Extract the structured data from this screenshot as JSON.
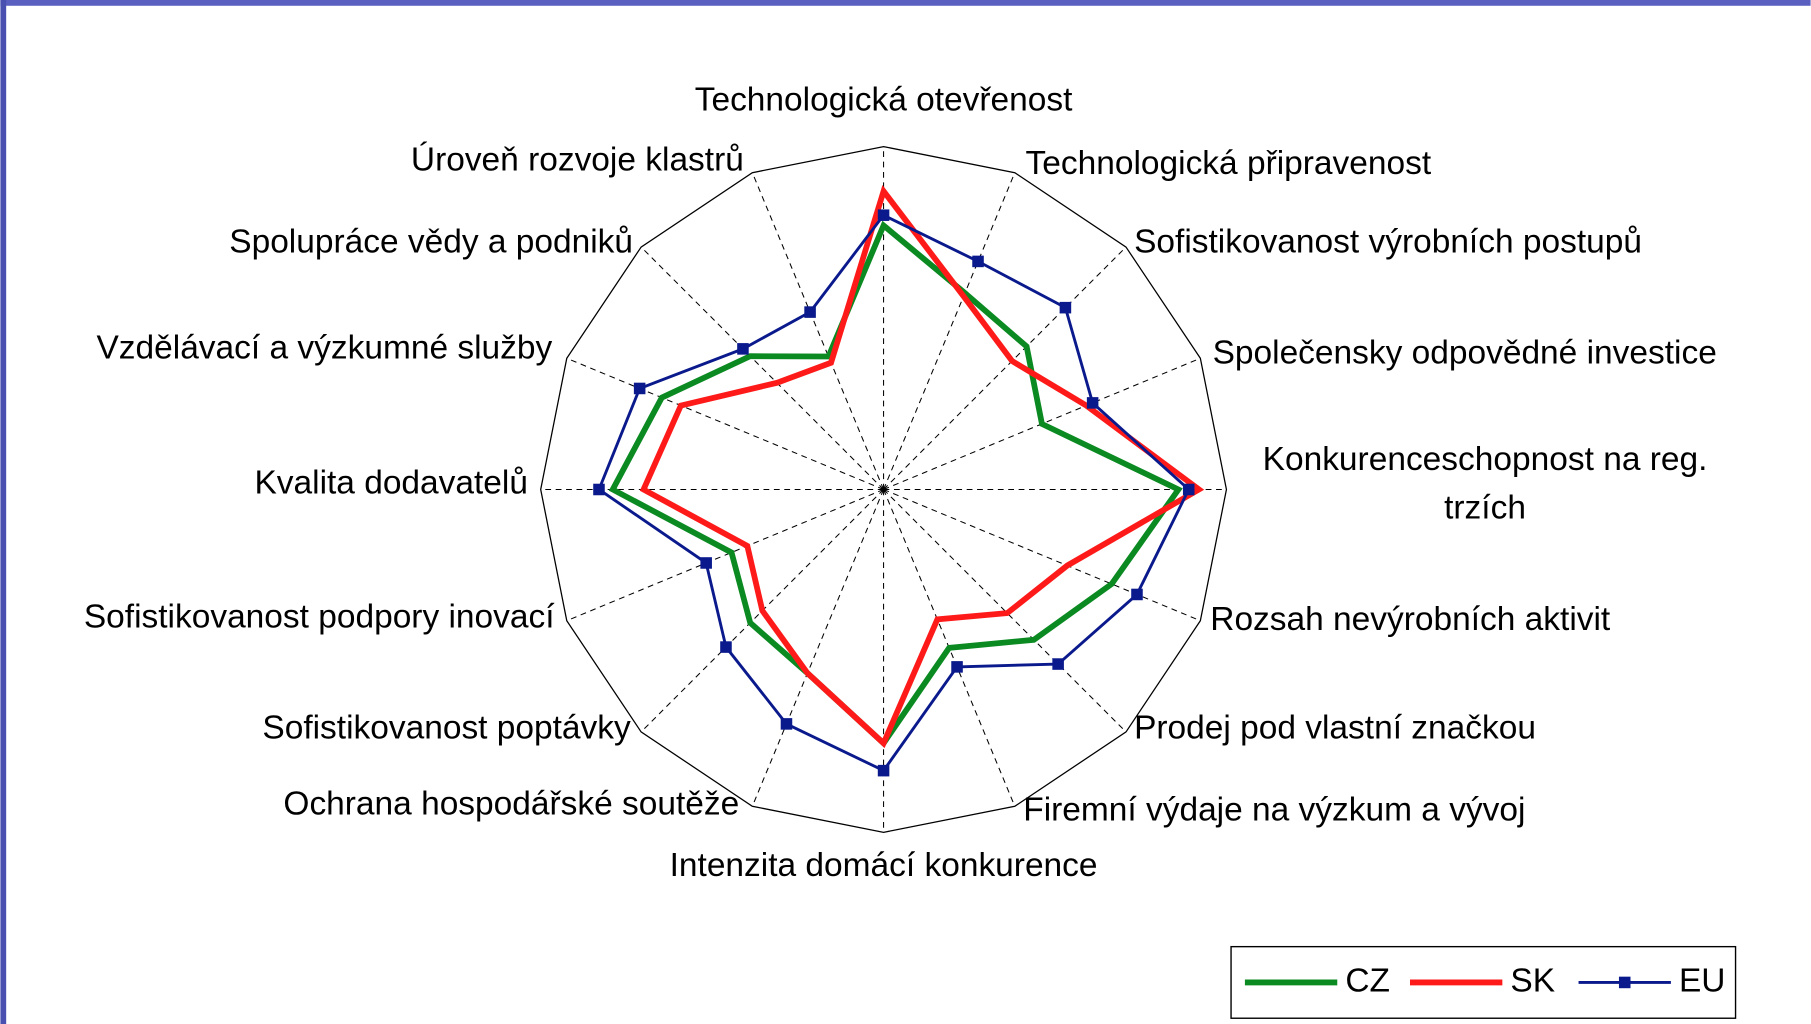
{
  "chart_data": {
    "type": "radar",
    "categories": [
      "Technologická otevřenost",
      "Technologická připravenost",
      "Sofistikovanost výrobních postupů",
      "Společensky odpovědné investice",
      "Konkurenceschopnost na reg. trzích",
      "Rozsah nevýrobních aktivit",
      "Prodej pod vlastní značkou",
      "Firemní výdaje na výzkum a vývoj",
      "Intenzita domácí konkurence",
      "Ochrana hospodářské soutěže",
      "Sofistikovanost poptávky",
      "Sofistikovanost podpory inovací",
      "Kvalita dodavatelů",
      "Vzdělávací a výzkumné služby",
      "Spolupráce vědy a podniků",
      "Úroveň rozvoje klastrů"
    ],
    "series": [
      {
        "name": "CZ",
        "color": "#0b8a22",
        "values": [
          0.77,
          0.62,
          0.59,
          0.5,
          0.86,
          0.72,
          0.62,
          0.5,
          0.74,
          0.58,
          0.55,
          0.48,
          0.79,
          0.7,
          0.55,
          0.42
        ]
      },
      {
        "name": "SK",
        "color": "#ff1a1a",
        "values": [
          0.87,
          0.61,
          0.53,
          0.64,
          0.92,
          0.58,
          0.51,
          0.41,
          0.74,
          0.58,
          0.5,
          0.43,
          0.7,
          0.64,
          0.44,
          0.4
        ]
      },
      {
        "name": "EU",
        "color": "#0a1a8c",
        "values": [
          0.8,
          0.72,
          0.75,
          0.66,
          0.89,
          0.8,
          0.72,
          0.56,
          0.82,
          0.74,
          0.65,
          0.56,
          0.83,
          0.77,
          0.58,
          0.56
        ],
        "marker": "square"
      }
    ],
    "ylim": [
      0,
      1
    ],
    "legend": "lower right"
  }
}
